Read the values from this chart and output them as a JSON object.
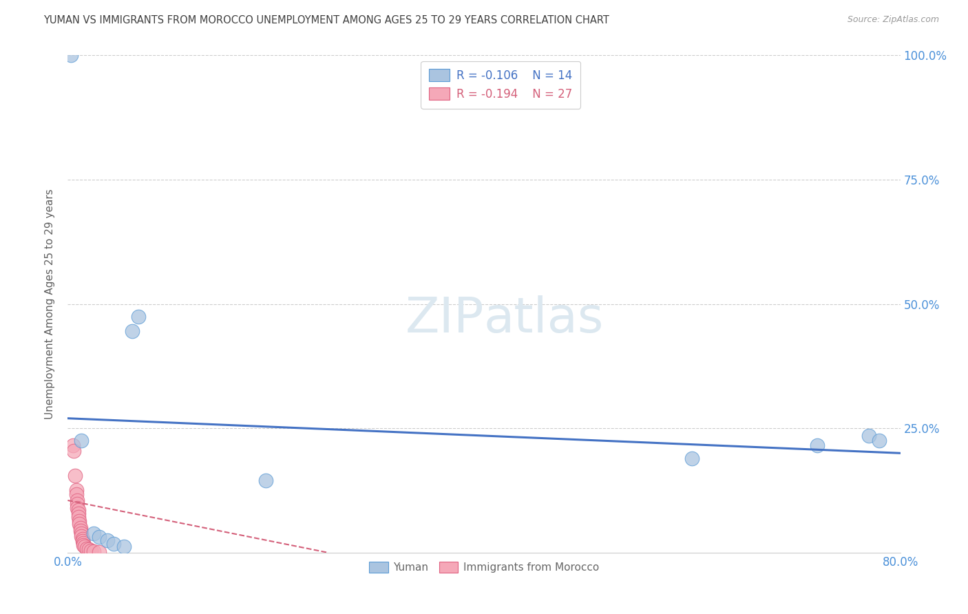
{
  "title": "YUMAN VS IMMIGRANTS FROM MOROCCO UNEMPLOYMENT AMONG AGES 25 TO 29 YEARS CORRELATION CHART",
  "source": "Source: ZipAtlas.com",
  "ylabel": "Unemployment Among Ages 25 to 29 years",
  "xlim": [
    0.0,
    0.8
  ],
  "ylim": [
    0.0,
    1.0
  ],
  "yticks": [
    0.0,
    0.25,
    0.5,
    0.75,
    1.0
  ],
  "ytick_labels": [
    "",
    "25.0%",
    "50.0%",
    "75.0%",
    "100.0%"
  ],
  "xticks": [
    0.0,
    0.1,
    0.2,
    0.3,
    0.4,
    0.5,
    0.6,
    0.7,
    0.8
  ],
  "xtick_labels": [
    "0.0%",
    "",
    "",
    "",
    "",
    "",
    "",
    "",
    "80.0%"
  ],
  "yuman_r": -0.106,
  "yuman_n": 14,
  "morocco_r": -0.194,
  "morocco_n": 27,
  "yuman_color": "#aac4e0",
  "morocco_color": "#f5a8b8",
  "yuman_edge_color": "#5b9bd5",
  "morocco_edge_color": "#e06080",
  "yuman_line_color": "#4472c4",
  "morocco_line_color": "#d4607a",
  "background_color": "#ffffff",
  "grid_color": "#cccccc",
  "title_color": "#404040",
  "axis_label_color": "#606060",
  "tick_color": "#4a90d9",
  "watermark_color": "#dce8f0",
  "yuman_points": [
    [
      0.003,
      1.0
    ],
    [
      0.068,
      0.475
    ],
    [
      0.062,
      0.445
    ],
    [
      0.013,
      0.225
    ],
    [
      0.19,
      0.145
    ],
    [
      0.025,
      0.038
    ],
    [
      0.03,
      0.032
    ],
    [
      0.038,
      0.025
    ],
    [
      0.044,
      0.018
    ],
    [
      0.054,
      0.012
    ],
    [
      0.6,
      0.19
    ],
    [
      0.72,
      0.215
    ],
    [
      0.77,
      0.235
    ],
    [
      0.78,
      0.225
    ]
  ],
  "morocco_points": [
    [
      0.005,
      0.215
    ],
    [
      0.006,
      0.205
    ],
    [
      0.007,
      0.155
    ],
    [
      0.008,
      0.125
    ],
    [
      0.008,
      0.118
    ],
    [
      0.009,
      0.105
    ],
    [
      0.009,
      0.098
    ],
    [
      0.009,
      0.09
    ],
    [
      0.01,
      0.085
    ],
    [
      0.01,
      0.078
    ],
    [
      0.01,
      0.072
    ],
    [
      0.011,
      0.063
    ],
    [
      0.011,
      0.058
    ],
    [
      0.012,
      0.05
    ],
    [
      0.012,
      0.044
    ],
    [
      0.013,
      0.038
    ],
    [
      0.013,
      0.033
    ],
    [
      0.014,
      0.028
    ],
    [
      0.014,
      0.023
    ],
    [
      0.015,
      0.019
    ],
    [
      0.015,
      0.015
    ],
    [
      0.016,
      0.012
    ],
    [
      0.018,
      0.008
    ],
    [
      0.02,
      0.006
    ],
    [
      0.022,
      0.004
    ],
    [
      0.025,
      0.002
    ],
    [
      0.03,
      0.001
    ]
  ],
  "yuman_trend_x": [
    0.0,
    0.8
  ],
  "yuman_trend_y": [
    0.27,
    0.2
  ],
  "morocco_trend_x": [
    0.0,
    0.25
  ],
  "morocco_trend_y": [
    0.105,
    0.0
  ]
}
